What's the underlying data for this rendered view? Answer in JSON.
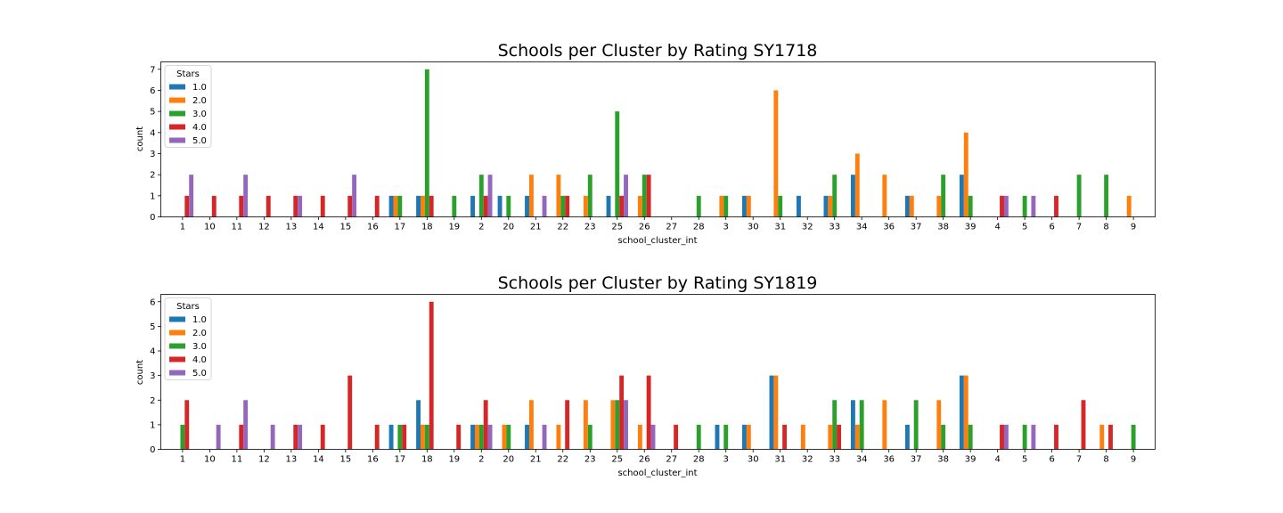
{
  "chart_data": [
    {
      "type": "bar",
      "title": "Schools per Cluster by Rating SY1718",
      "xlabel": "school_cluster_int",
      "ylabel": "count",
      "ylim": [
        0,
        7.35
      ],
      "yticks": [
        0,
        1,
        2,
        3,
        4,
        5,
        6,
        7
      ],
      "grid": false,
      "legend": {
        "title": "Stars",
        "placement": "upper-left"
      },
      "categories": [
        "1",
        "10",
        "11",
        "12",
        "13",
        "14",
        "15",
        "16",
        "17",
        "18",
        "19",
        "2",
        "20",
        "21",
        "22",
        "23",
        "25",
        "26",
        "27",
        "28",
        "3",
        "30",
        "31",
        "32",
        "33",
        "34",
        "36",
        "37",
        "38",
        "39",
        "4",
        "5",
        "6",
        "7",
        "8",
        "9"
      ],
      "series": [
        {
          "name": "1.0",
          "color": "#1f77b4",
          "values": [
            0,
            0,
            0,
            0,
            0,
            0,
            0,
            0,
            1,
            1,
            0,
            1,
            1,
            1,
            0,
            0,
            1,
            0,
            0,
            0,
            0,
            1,
            0,
            1,
            1,
            2,
            0,
            1,
            0,
            2,
            0,
            0,
            0,
            0,
            0,
            0
          ]
        },
        {
          "name": "2.0",
          "color": "#ff7f0e",
          "values": [
            0,
            0,
            0,
            0,
            0,
            0,
            0,
            0,
            1,
            1,
            0,
            0,
            0,
            2,
            2,
            1,
            0,
            1,
            0,
            0,
            1,
            1,
            6,
            0,
            1,
            3,
            2,
            1,
            1,
            4,
            0,
            0,
            0,
            0,
            0,
            1
          ]
        },
        {
          "name": "3.0",
          "color": "#2ca02c",
          "values": [
            0,
            0,
            0,
            0,
            0,
            0,
            0,
            0,
            1,
            7,
            1,
            2,
            1,
            0,
            1,
            2,
            5,
            2,
            0,
            1,
            1,
            0,
            1,
            0,
            2,
            0,
            0,
            0,
            2,
            1,
            0,
            1,
            0,
            2,
            2,
            0
          ]
        },
        {
          "name": "4.0",
          "color": "#d62728",
          "values": [
            1,
            1,
            1,
            1,
            1,
            1,
            1,
            1,
            0,
            1,
            0,
            1,
            0,
            0,
            1,
            0,
            1,
            2,
            0,
            0,
            0,
            0,
            0,
            0,
            0,
            0,
            0,
            0,
            0,
            0,
            1,
            0,
            1,
            0,
            0,
            0
          ]
        },
        {
          "name": "5.0",
          "color": "#9467bd",
          "values": [
            2,
            0,
            2,
            0,
            1,
            0,
            2,
            0,
            0,
            0,
            0,
            2,
            0,
            1,
            0,
            0,
            2,
            0,
            0,
            0,
            0,
            0,
            0,
            0,
            0,
            0,
            0,
            0,
            0,
            0,
            1,
            1,
            0,
            0,
            0,
            0
          ]
        }
      ]
    },
    {
      "type": "bar",
      "title": "Schools per Cluster by Rating SY1819",
      "xlabel": "school_cluster_int",
      "ylabel": "count",
      "ylim": [
        0,
        6.3
      ],
      "yticks": [
        0,
        1,
        2,
        3,
        4,
        5,
        6
      ],
      "grid": false,
      "legend": {
        "title": "Stars",
        "placement": "upper-left"
      },
      "categories": [
        "1",
        "10",
        "11",
        "12",
        "13",
        "14",
        "15",
        "16",
        "17",
        "18",
        "19",
        "2",
        "20",
        "21",
        "22",
        "23",
        "25",
        "26",
        "27",
        "28",
        "3",
        "30",
        "31",
        "32",
        "33",
        "34",
        "36",
        "37",
        "38",
        "39",
        "4",
        "5",
        "6",
        "7",
        "8",
        "9"
      ],
      "series": [
        {
          "name": "1.0",
          "color": "#1f77b4",
          "values": [
            0,
            0,
            0,
            0,
            0,
            0,
            0,
            0,
            1,
            2,
            0,
            1,
            0,
            1,
            0,
            0,
            0,
            0,
            0,
            0,
            1,
            1,
            3,
            0,
            0,
            2,
            0,
            1,
            0,
            3,
            0,
            0,
            0,
            0,
            0,
            0
          ]
        },
        {
          "name": "2.0",
          "color": "#ff7f0e",
          "values": [
            0,
            0,
            0,
            0,
            0,
            0,
            0,
            0,
            0,
            1,
            0,
            1,
            1,
            2,
            1,
            2,
            2,
            1,
            0,
            0,
            0,
            1,
            3,
            1,
            1,
            1,
            2,
            0,
            2,
            3,
            0,
            0,
            0,
            0,
            1,
            0
          ]
        },
        {
          "name": "3.0",
          "color": "#2ca02c",
          "values": [
            1,
            0,
            0,
            0,
            0,
            0,
            0,
            0,
            1,
            1,
            0,
            1,
            1,
            0,
            0,
            1,
            2,
            0,
            0,
            1,
            1,
            0,
            0,
            0,
            2,
            2,
            0,
            2,
            1,
            1,
            0,
            1,
            0,
            0,
            0,
            1
          ]
        },
        {
          "name": "4.0",
          "color": "#d62728",
          "values": [
            2,
            0,
            1,
            0,
            1,
            1,
            3,
            1,
            1,
            6,
            1,
            2,
            0,
            0,
            2,
            0,
            3,
            3,
            1,
            0,
            0,
            0,
            1,
            0,
            1,
            0,
            0,
            0,
            0,
            0,
            1,
            0,
            1,
            2,
            1,
            0
          ]
        },
        {
          "name": "5.0",
          "color": "#9467bd",
          "values": [
            0,
            1,
            2,
            1,
            1,
            0,
            0,
            0,
            0,
            0,
            0,
            1,
            0,
            1,
            0,
            0,
            2,
            1,
            0,
            0,
            0,
            0,
            0,
            0,
            0,
            0,
            0,
            0,
            0,
            0,
            1,
            1,
            0,
            0,
            0,
            0
          ]
        }
      ]
    }
  ]
}
